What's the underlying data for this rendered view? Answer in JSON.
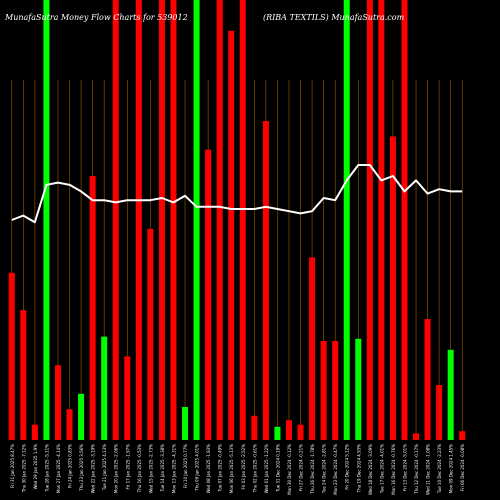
{
  "chart_data": {
    "type": "bar",
    "title_left": "MunafaSutra  Money Flow  Charts for 539012",
    "title_right": "(RIBA TEXTILS) MunafaSutra.com",
    "colors": {
      "background": "#000000",
      "up": "#00ff00",
      "down": "#ff0000",
      "grid": "#a05a00",
      "line": "#ffffff",
      "text": "#ffffff"
    },
    "ylim": [
      0,
      100
    ],
    "grid": true,
    "series": [
      {
        "kind": "bars",
        "values": [
          38,
          29.5,
          3.5,
          100,
          17,
          7,
          10.5,
          60,
          23.5,
          100,
          19,
          100,
          48,
          100,
          100,
          7.5,
          100,
          66,
          100,
          93,
          100,
          5.5,
          72.5,
          3,
          4.5,
          3.5,
          41.5,
          22.5,
          22.5,
          100,
          23,
          100,
          100,
          69,
          100,
          1.5,
          27.5,
          12.5,
          20.5,
          2
        ],
        "colors": [
          "red",
          "red",
          "red",
          "green",
          "red",
          "red",
          "green",
          "red",
          "green",
          "red",
          "red",
          "red",
          "red",
          "red",
          "red",
          "green",
          "green",
          "red",
          "red",
          "red",
          "red",
          "red",
          "red",
          "green",
          "red",
          "red",
          "red",
          "red",
          "red",
          "green",
          "green",
          "red",
          "red",
          "red",
          "red",
          "red",
          "red",
          "red",
          "green",
          "red"
        ]
      },
      {
        "kind": "line",
        "values": [
          50,
          51,
          49.5,
          58,
          58.5,
          58,
          56.5,
          54.5,
          54.5,
          54,
          54.5,
          54.5,
          54.5,
          55,
          54,
          55.5,
          53,
          53,
          53,
          52.5,
          52.5,
          52.5,
          53,
          52.5,
          52,
          51.5,
          52,
          55,
          54.5,
          59,
          62.5,
          62.5,
          59,
          60,
          56.5,
          59,
          56,
          57,
          56.5,
          56.5
        ]
      }
    ],
    "x_tick_labels": [
      "Fri 31 Jan 2025 8.47%",
      "Thu 30 Jan 2025 -7.12%",
      "Wed 29 Jan 2025 1.9%",
      "Tue 28 Jan 2025 -5.11%",
      "Mon 27 Jan 2025 -4.14%",
      "Fri 24 Jan 2025 0.83%",
      "Thu 23 Jan 2025 3.56%",
      "Wed 22 Jan 2025 -3.19%",
      "Tue 21 Jan 2025 4.13%",
      "Mon 20 Jan 2025 -2.06%",
      "Fri 17 Jan 2025 -1.97%",
      "Thu 16 Jan 2025 -0.53%",
      "Wed 15 Jan 2025 -2.73%",
      "Tue 14 Jan 2025 -3.38%",
      "Mon 13 Jan 2025 -4.31%",
      "Fri 10 Jan 2025 0.77%",
      "Thu 09 Jan 2025 4.01%",
      "Wed 08 Jan 2025 -1.93%",
      "Tue 07 Jan 2025 -0.49%",
      "Mon 06 Jan 2025 -5.13%",
      "Fri 03 Jan 2025 -2.52%",
      "Thu 02 Jan 2025 -0.61%",
      "Wed 01 Jan 2025 -1.22%",
      "Tue 31 Dec 2024 0.19%",
      "Mon 30 Dec 2024 -0.12%",
      "Fri 27 Dec 2024 -0.21%",
      "Thu 26 Dec 2024 -1.78%",
      "Tue 24 Dec 2024 -2.81%",
      "Mon 23 Dec 2024 -0.47%",
      "Fri 20 Dec 2024 5.12%",
      "Thu 19 Dec 2024 4.93%",
      "Wed 18 Dec 2024 -3.09%",
      "Tue 17 Dec 2024 -4.01%",
      "Mon 16 Dec 2024 -0.76%",
      "Fri 13 Dec 2024 -5.01%",
      "Thu 12 Dec 2024 -0.17%",
      "Wed 11 Dec 2024 -1.08%",
      "Tue 10 Dec 2024 -2.23%",
      "Mon 09 Dec 2024 1.45%",
      "Fri 06 Dec 2024 -0.08%"
    ]
  }
}
